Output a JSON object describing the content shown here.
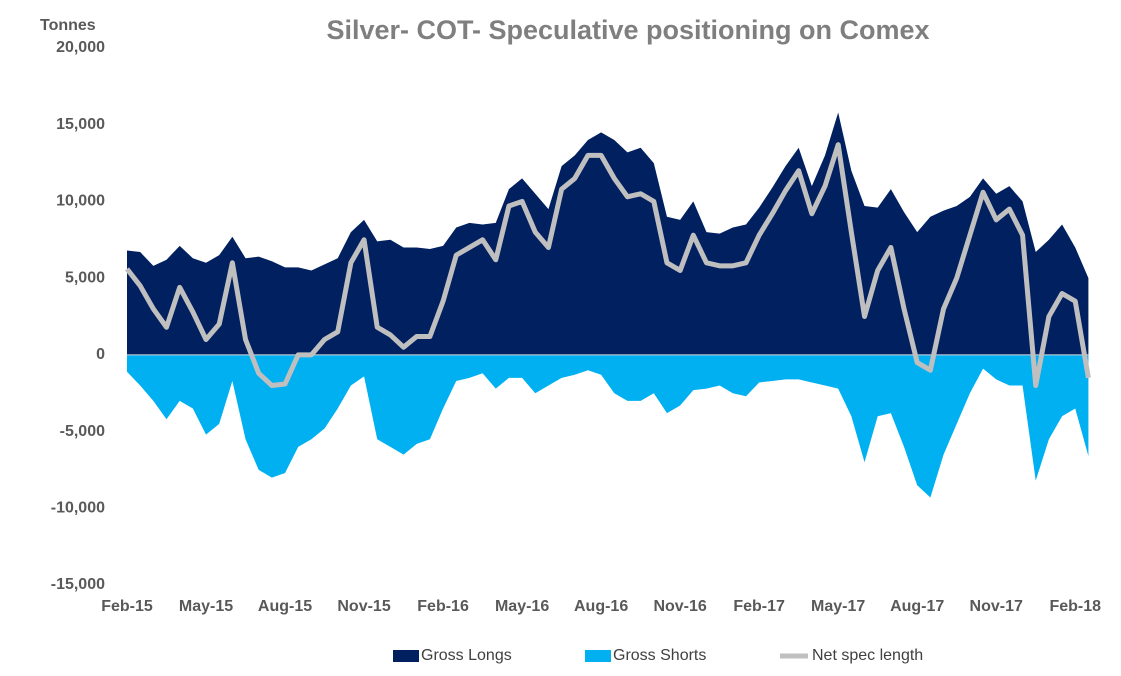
{
  "chart_data": {
    "type": "area",
    "title": "Silver- COT- Speculative positioning on Comex",
    "y_label": "Tonnes",
    "categories": [
      "Feb-15",
      null,
      null,
      null,
      null,
      null,
      "May-15",
      null,
      null,
      null,
      null,
      null,
      "Aug-15",
      null,
      null,
      null,
      null,
      null,
      "Nov-15",
      null,
      null,
      null,
      null,
      null,
      "Feb-16",
      null,
      null,
      null,
      null,
      null,
      "May-16",
      null,
      null,
      null,
      null,
      null,
      "Aug-16",
      null,
      null,
      null,
      null,
      null,
      "Nov-16",
      null,
      null,
      null,
      null,
      null,
      "Feb-17",
      null,
      null,
      null,
      null,
      null,
      "May-17",
      null,
      null,
      null,
      null,
      null,
      "Aug-17",
      null,
      null,
      null,
      null,
      null,
      "Nov-17",
      null,
      null,
      null,
      null,
      null,
      "Feb-18",
      null
    ],
    "series": [
      {
        "name": "Gross Longs",
        "color": "#002060",
        "kind": "area",
        "values": [
          6800,
          6700,
          5800,
          6200,
          7100,
          6300,
          6000,
          6500,
          7700,
          6300,
          6400,
          6100,
          5700,
          5700,
          5500,
          5900,
          6300,
          8000,
          8800,
          7400,
          7500,
          7000,
          7000,
          6900,
          7100,
          8300,
          8600,
          8500,
          8600,
          10800,
          11500,
          10500,
          9500,
          12300,
          13000,
          14000,
          14500,
          14000,
          13200,
          13500,
          12500,
          9000,
          8800,
          10000,
          8000,
          7900,
          8300,
          8500,
          9600,
          10900,
          12300,
          13500,
          11000,
          13000,
          15800,
          12000,
          9700,
          9600,
          10800,
          9300,
          8000,
          9000,
          9400,
          9700,
          10300,
          11500,
          10500,
          11000,
          10000,
          6700,
          7500,
          8500,
          7000,
          5000
        ]
      },
      {
        "name": "Gross Shorts",
        "color": "#00b0f0",
        "kind": "area",
        "values": [
          -1100,
          -2000,
          -3000,
          -4200,
          -3000,
          -3500,
          -5200,
          -4500,
          -1700,
          -5500,
          -7500,
          -8000,
          -7700,
          -6000,
          -5500,
          -4800,
          -3500,
          -2000,
          -1400,
          -5500,
          -6000,
          -6500,
          -5800,
          -5500,
          -3500,
          -1700,
          -1500,
          -1200,
          -2200,
          -1500,
          -1500,
          -2500,
          -2000,
          -1500,
          -1300,
          -1000,
          -1300,
          -2500,
          -3000,
          -3000,
          -2500,
          -3800,
          -3300,
          -2300,
          -2200,
          -2000,
          -2500,
          -2700,
          -1800,
          -1700,
          -1600,
          -1600,
          -1800,
          -2000,
          -2200,
          -4000,
          -7000,
          -4000,
          -3800,
          -6000,
          -8500,
          -9300,
          -6500,
          -4500,
          -2500,
          -900,
          -1600,
          -2000,
          -2000,
          -8200,
          -5500,
          -4000,
          -3500,
          -6600
        ]
      },
      {
        "name": "Net spec length",
        "color": "#bfbfbf",
        "kind": "line",
        "values": [
          5600,
          4500,
          3000,
          1800,
          4400,
          2800,
          1000,
          2000,
          6000,
          1000,
          -1200,
          -2000,
          -1900,
          0,
          0,
          1000,
          1500,
          6000,
          7500,
          1800,
          1300,
          500,
          1200,
          1200,
          3500,
          6500,
          7000,
          7500,
          6200,
          9700,
          10000,
          8000,
          7000,
          10800,
          11500,
          13000,
          13000,
          11500,
          10300,
          10500,
          10000,
          6000,
          5500,
          7800,
          6000,
          5800,
          5800,
          6000,
          7800,
          9200,
          10700,
          12000,
          9200,
          11000,
          13700,
          8000,
          2500,
          5500,
          7000,
          3000,
          -500,
          -1000,
          3000,
          5000,
          7800,
          10600,
          8800,
          9500,
          7800,
          -2000,
          2500,
          4000,
          3500,
          -1500
        ]
      }
    ],
    "ylim": [
      -15000,
      20000
    ],
    "yticks": [
      {
        "value": -15000,
        "label": "-15,000"
      },
      {
        "value": -10000,
        "label": "-10,000"
      },
      {
        "value": -5000,
        "label": "-5,000"
      },
      0,
      {
        "value": 5000,
        "label": "5,000"
      },
      {
        "value": 10000,
        "label": "10,000"
      },
      {
        "value": 15000,
        "label": "15,000"
      },
      {
        "value": 20000,
        "label": "20,000"
      }
    ],
    "legend": "bottom"
  }
}
